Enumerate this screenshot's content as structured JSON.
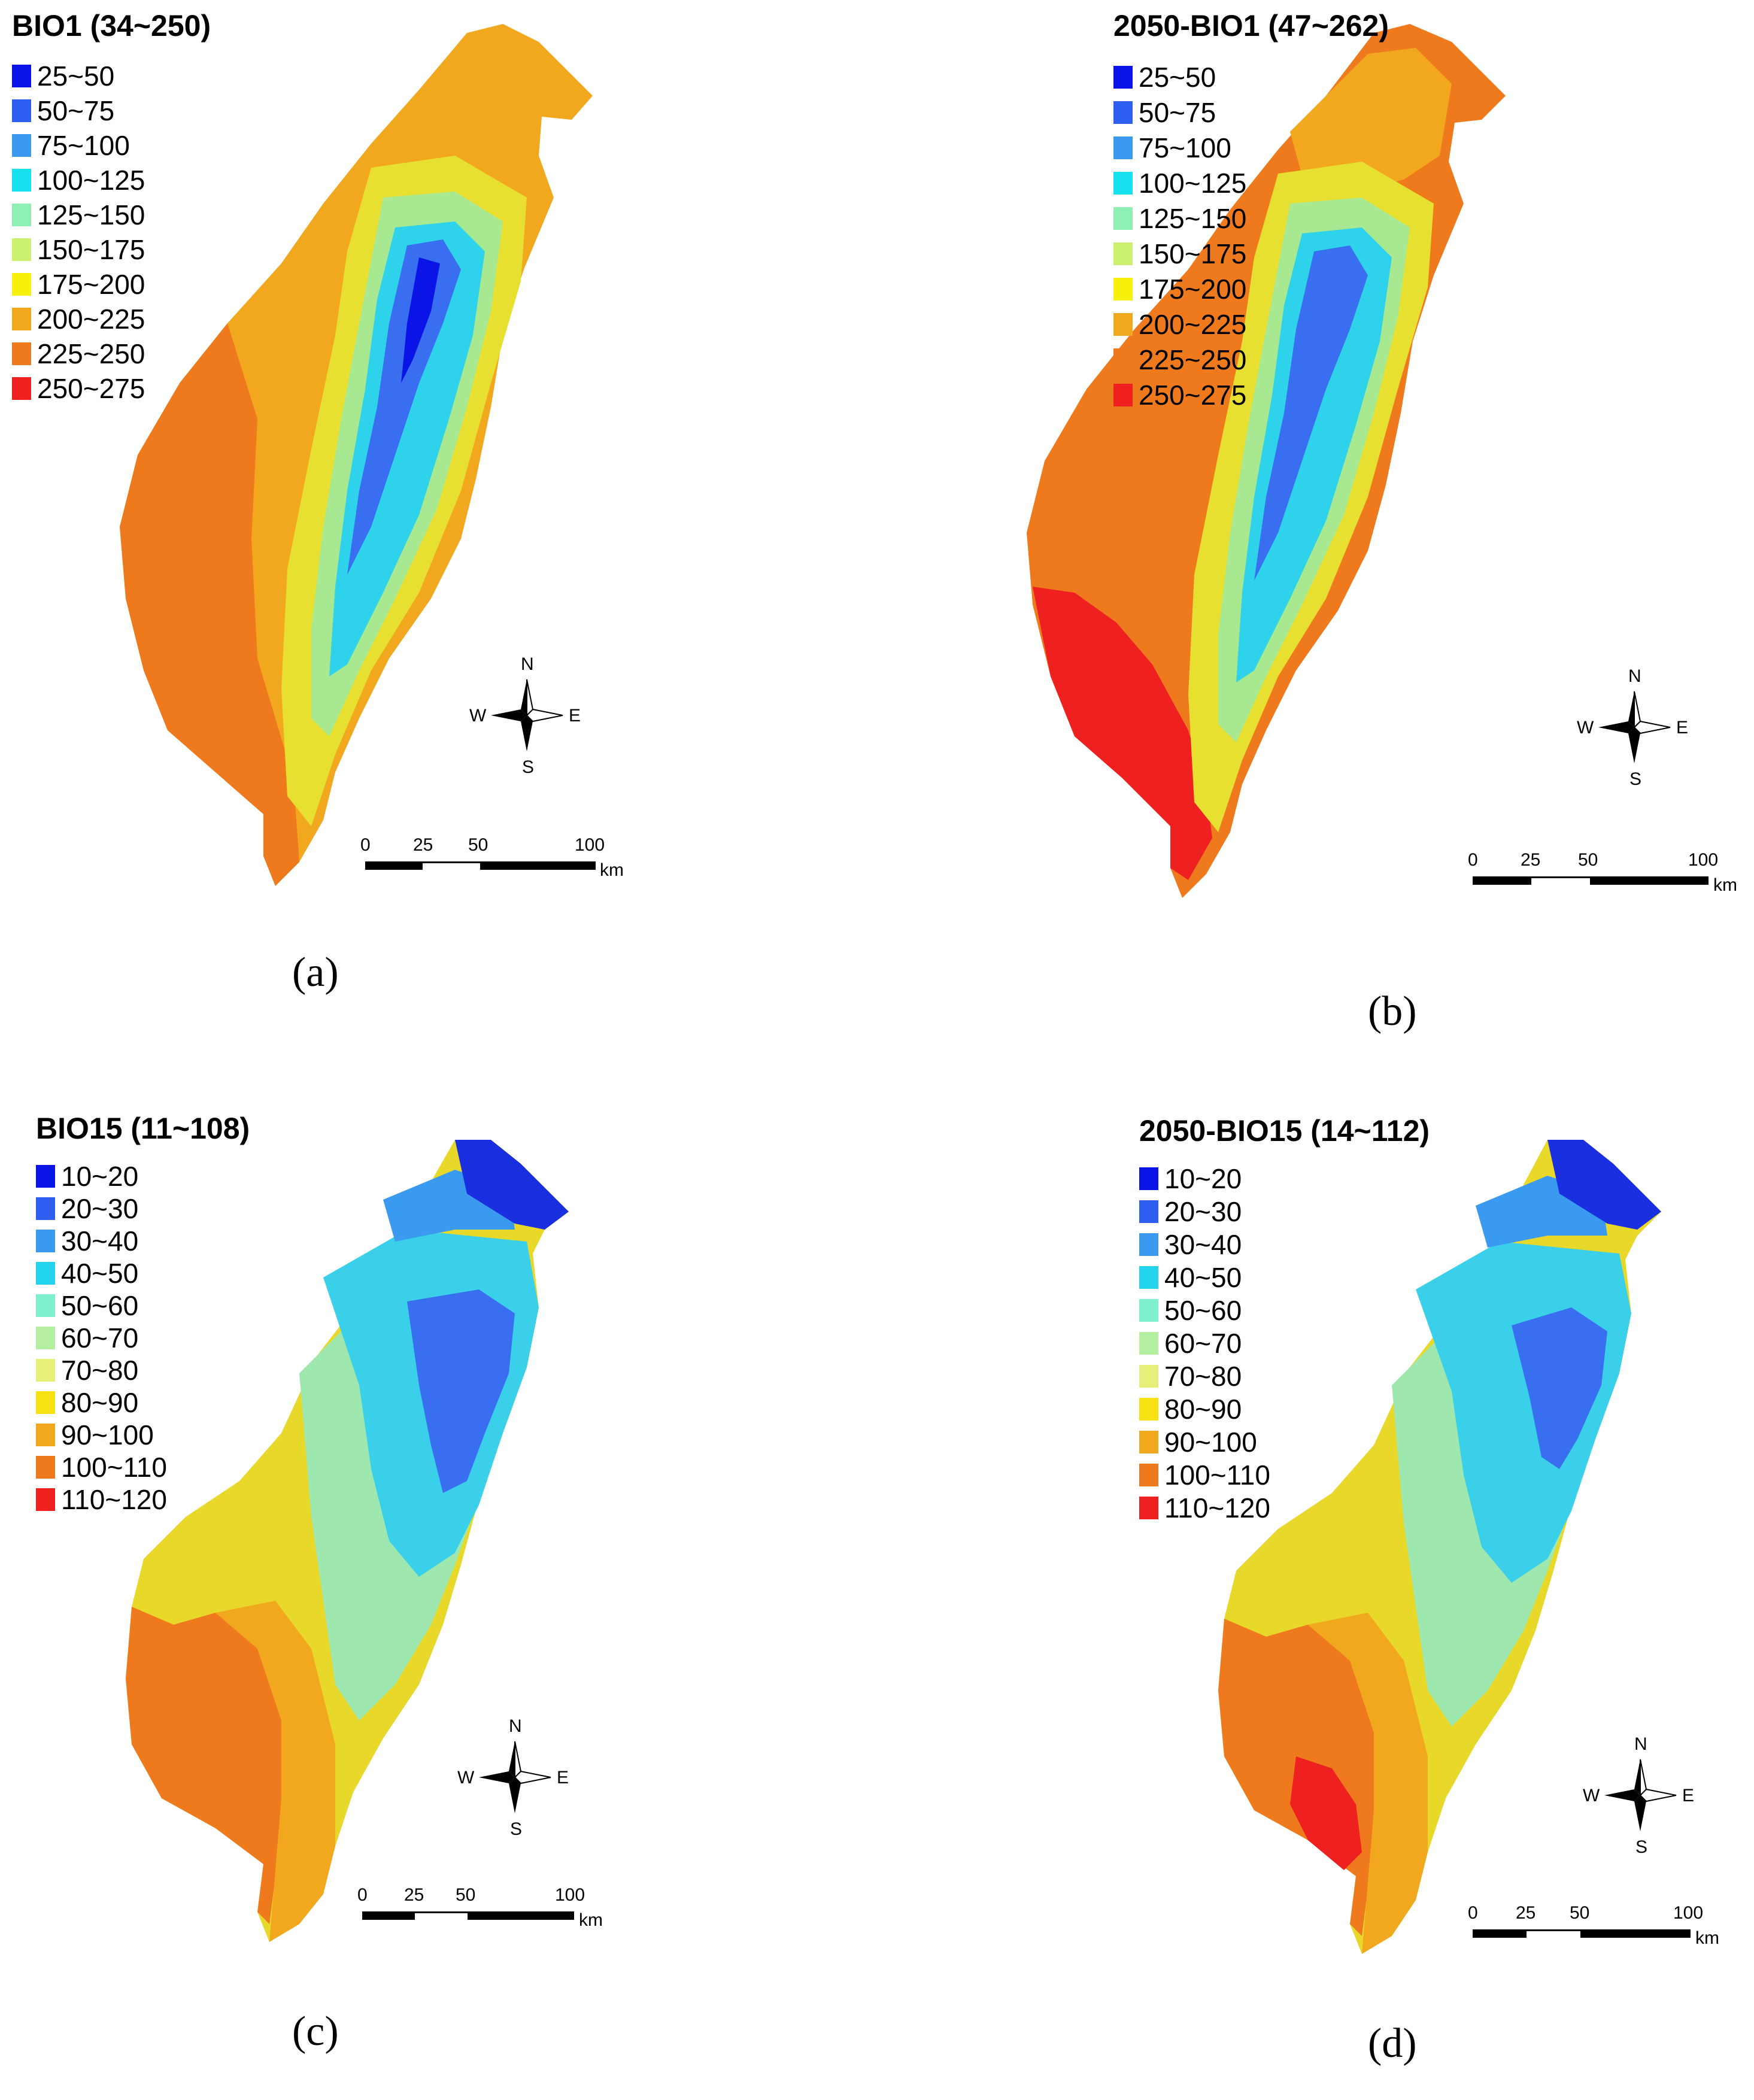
{
  "panels": [
    {
      "id": "a",
      "title": "BIO1 (34~250)",
      "label": "(a)",
      "legend": [
        {
          "label": "25~50",
          "color": "#0a14e6"
        },
        {
          "label": "50~75",
          "color": "#2f5ef2"
        },
        {
          "label": "75~100",
          "color": "#3a9af0"
        },
        {
          "label": "100~125",
          "color": "#16e2ee"
        },
        {
          "label": "125~150",
          "color": "#8ef0b4"
        },
        {
          "label": "150~175",
          "color": "#ccf070"
        },
        {
          "label": "175~200",
          "color": "#f6f00a"
        },
        {
          "label": "200~225",
          "color": "#f2a81e"
        },
        {
          "label": "225~250",
          "color": "#ef7a1e"
        },
        {
          "label": "250~275",
          "color": "#ee2020"
        }
      ],
      "compass": {
        "n": "N",
        "e": "E",
        "s": "S",
        "w": "W"
      },
      "scale": {
        "ticks": [
          "0",
          "25",
          "50",
          "100"
        ],
        "unit": "km"
      }
    },
    {
      "id": "b",
      "title": "2050-BIO1 (47~262)",
      "label": "(b)",
      "legend": [
        {
          "label": "25~50",
          "color": "#0a14e6"
        },
        {
          "label": "50~75",
          "color": "#2f5ef2"
        },
        {
          "label": "75~100",
          "color": "#3a9af0"
        },
        {
          "label": "100~125",
          "color": "#16e2ee"
        },
        {
          "label": "125~150",
          "color": "#8ef0b4"
        },
        {
          "label": "150~175",
          "color": "#ccf070"
        },
        {
          "label": "175~200",
          "color": "#f6f00a"
        },
        {
          "label": "200~225",
          "color": "#f2a81e"
        },
        {
          "label": "225~250",
          "color": "#ef7a1e"
        },
        {
          "label": "250~275",
          "color": "#ee2020"
        }
      ],
      "compass": {
        "n": "N",
        "e": "E",
        "s": "S",
        "w": "W"
      },
      "scale": {
        "ticks": [
          "0",
          "25",
          "50",
          "100"
        ],
        "unit": "km"
      }
    },
    {
      "id": "c",
      "title": "BIO15 (11~108)",
      "label": "(c)",
      "legend": [
        {
          "label": "10~20",
          "color": "#0a14e6"
        },
        {
          "label": "20~30",
          "color": "#2f5ef2"
        },
        {
          "label": "30~40",
          "color": "#3a9af0"
        },
        {
          "label": "40~50",
          "color": "#22d4ee"
        },
        {
          "label": "50~60",
          "color": "#7ef0d0"
        },
        {
          "label": "60~70",
          "color": "#b4f0a0"
        },
        {
          "label": "70~80",
          "color": "#e6f078"
        },
        {
          "label": "80~90",
          "color": "#f6e212"
        },
        {
          "label": "90~100",
          "color": "#f2a81e"
        },
        {
          "label": "100~110",
          "color": "#ef7a1e"
        },
        {
          "label": "110~120",
          "color": "#ee2020"
        }
      ],
      "compass": {
        "n": "N",
        "e": "E",
        "s": "S",
        "w": "W"
      },
      "scale": {
        "ticks": [
          "0",
          "25",
          "50",
          "100"
        ],
        "unit": "km"
      }
    },
    {
      "id": "d",
      "title": "2050-BIO15 (14~112)",
      "label": "(d)",
      "legend": [
        {
          "label": "10~20",
          "color": "#0a14e6"
        },
        {
          "label": "20~30",
          "color": "#2f5ef2"
        },
        {
          "label": "30~40",
          "color": "#3a9af0"
        },
        {
          "label": "40~50",
          "color": "#22d4ee"
        },
        {
          "label": "50~60",
          "color": "#7ef0d0"
        },
        {
          "label": "60~70",
          "color": "#b4f0a0"
        },
        {
          "label": "70~80",
          "color": "#e6f078"
        },
        {
          "label": "80~90",
          "color": "#f6e212"
        },
        {
          "label": "90~100",
          "color": "#f2a81e"
        },
        {
          "label": "100~110",
          "color": "#ef7a1e"
        },
        {
          "label": "110~120",
          "color": "#ee2020"
        }
      ],
      "compass": {
        "n": "N",
        "e": "E",
        "s": "S",
        "w": "W"
      },
      "scale": {
        "ticks": [
          "0",
          "25",
          "50",
          "100"
        ],
        "unit": "km"
      }
    }
  ]
}
